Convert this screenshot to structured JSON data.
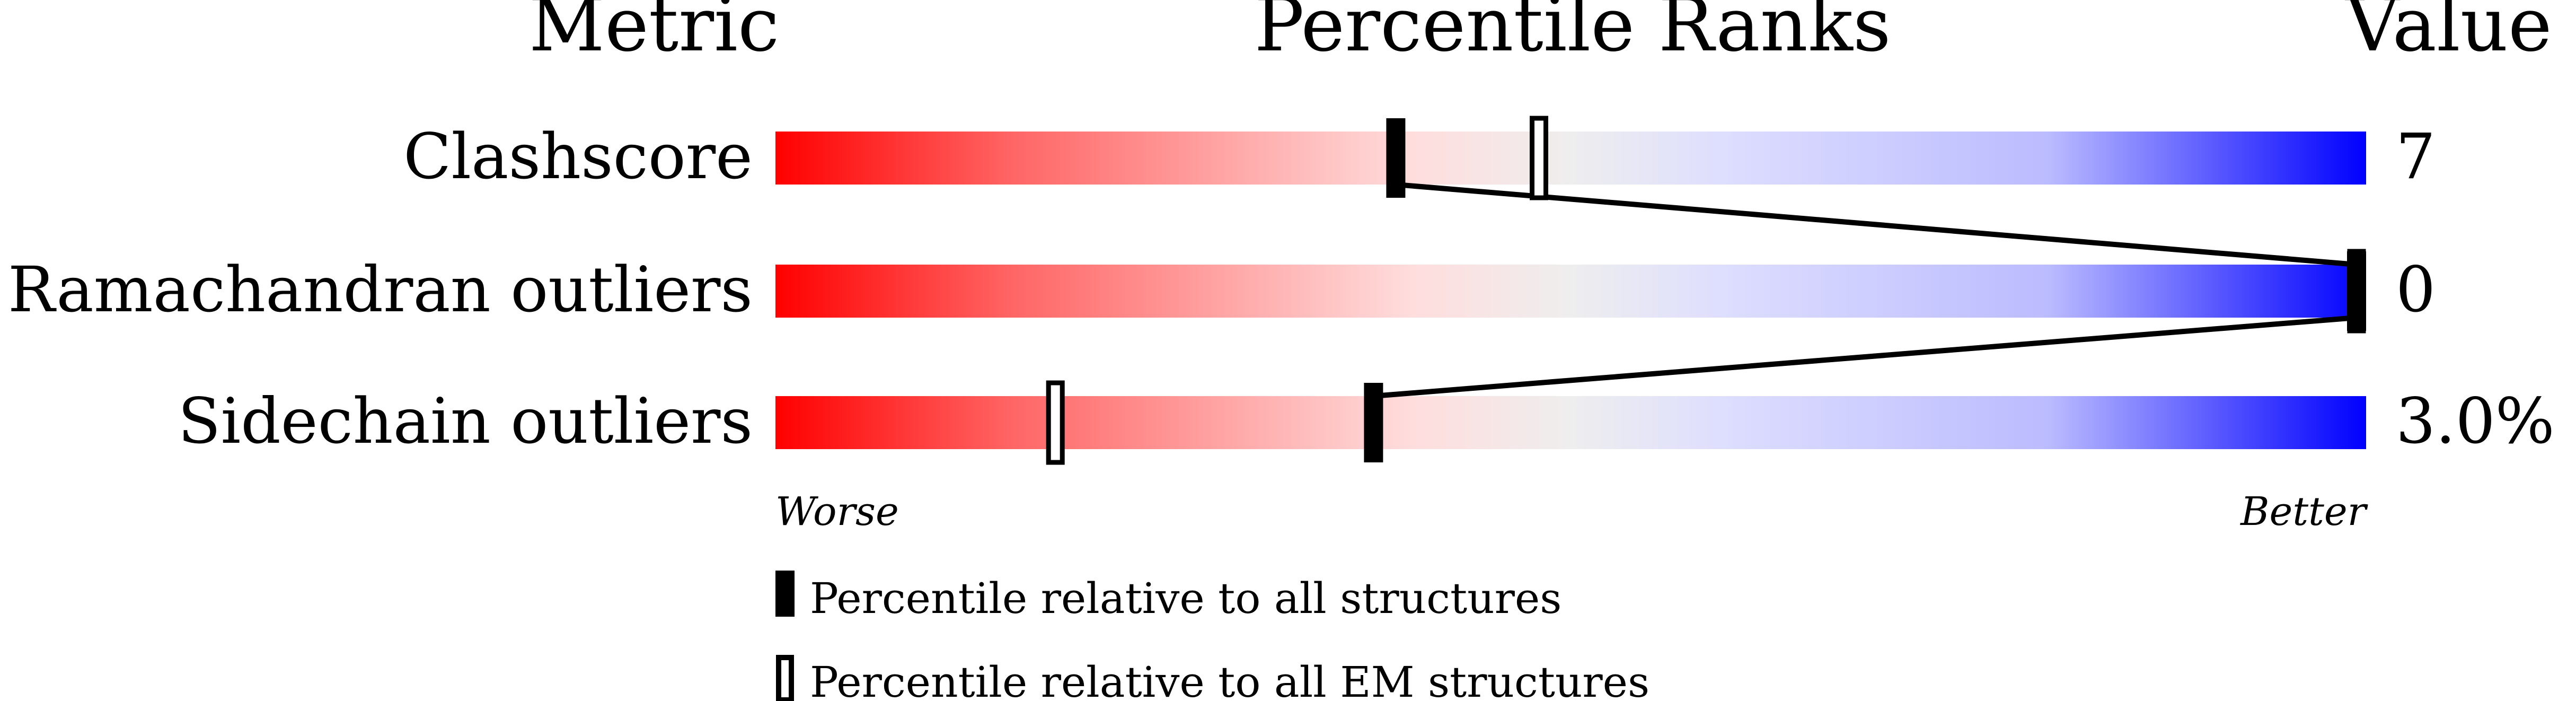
{
  "headers": {
    "metric": "Metric",
    "percentile": "Percentile Ranks",
    "value": "Value"
  },
  "chart_data": {
    "type": "bar",
    "xlim": [
      0,
      100
    ],
    "gradient_colors": [
      "#ff0000",
      "#eeeeee",
      "#0000ff"
    ],
    "rows": [
      {
        "metric": "Clashscore",
        "value": "7",
        "percentile_all": 39,
        "percentile_em": 48
      },
      {
        "metric": "Ramachandran outliers",
        "value": "0",
        "percentile_all": 100,
        "percentile_em": 100
      },
      {
        "metric": "Sidechain outliers",
        "value": "3.0%",
        "percentile_all": 37.6,
        "percentile_em": 17.6
      }
    ],
    "axis": {
      "worse": "Worse",
      "better": "Better"
    },
    "legend": [
      {
        "marker": "filled",
        "label": "Percentile relative to all structures"
      },
      {
        "marker": "open",
        "label": "Percentile relative to all EM structures"
      }
    ]
  }
}
